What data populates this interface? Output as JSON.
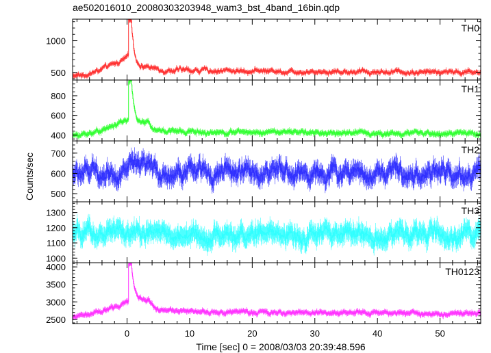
{
  "chart_data": {
    "type": "line",
    "title": "ae502016010_20080303203948_wam3_bst_4band_16bin.qdp",
    "xlabel": "Time [sec] 0 = 2008/03/03 20:39:48.596",
    "ylabel": "Counts/sec",
    "xlim": [
      -8.7,
      56.5
    ],
    "x_ticks": [
      0,
      10,
      20,
      30,
      40,
      50
    ],
    "x_tick_labels": [
      "0",
      "10",
      "20",
      "30",
      "40",
      "50"
    ],
    "grid": false,
    "panels": [
      {
        "name": "TH0",
        "color": "#ff3030",
        "ylim": [
          380,
          1340
        ],
        "y_ticks": [
          500,
          1000
        ],
        "y_tick_labels": [
          "500",
          "1000"
        ],
        "profile": {
          "pre_start": 440,
          "pre_end": 740,
          "peak_t": 0.5,
          "peak": 1320,
          "decay_level": 590,
          "decay_tau": 1.3,
          "tail_start": 540,
          "tail_end": 500
        },
        "noise": 45,
        "errbar": 32
      },
      {
        "name": "TH1",
        "color": "#30ff30",
        "ylim": [
          340,
          960
        ],
        "y_ticks": [
          400,
          600,
          800
        ],
        "y_tick_labels": [
          "400",
          "600",
          "800"
        ],
        "profile": {
          "pre_start": 395,
          "pre_end": 560,
          "peak_t": 0.5,
          "peak": 940,
          "decay_level": 520,
          "decay_tau": 1.3,
          "tail_start": 440,
          "tail_end": 410
        },
        "noise": 28,
        "errbar": 24
      },
      {
        "name": "TH2",
        "color": "#3030ff",
        "ylim": [
          460,
          760
        ],
        "y_ticks": [
          500,
          600,
          700
        ],
        "y_tick_labels": [
          "500",
          "600",
          "700"
        ],
        "profile": {
          "pre_start": 600,
          "pre_end": 620,
          "peak_t": 0.5,
          "peak": 640,
          "decay_level": 615,
          "decay_tau": 1.5,
          "tail_start": 605,
          "tail_end": 600
        },
        "noise": 52,
        "errbar": 38
      },
      {
        "name": "TH3",
        "color": "#30ffff",
        "ylim": [
          970,
          1370
        ],
        "y_ticks": [
          1000,
          1100,
          1200,
          1300
        ],
        "y_tick_labels": [
          "1000",
          "1100",
          "1200",
          "1300"
        ],
        "profile": {
          "pre_start": 1150,
          "pre_end": 1160,
          "peak_t": 0.5,
          "peak": 1160,
          "decay_level": 1160,
          "decay_tau": 1.5,
          "tail_start": 1150,
          "tail_end": 1150
        },
        "noise": 62,
        "errbar": 55
      },
      {
        "name": "TH0123",
        "color": "#ff30ff",
        "ylim": [
          2380,
          4120
        ],
        "y_ticks": [
          2500,
          3000,
          3500,
          4000
        ],
        "y_tick_labels": [
          "2500",
          "3000",
          "3500",
          "4000"
        ],
        "profile": {
          "pre_start": 2580,
          "pre_end": 3000,
          "peak_t": 0.5,
          "peak": 4090,
          "decay_level": 3050,
          "decay_tau": 1.4,
          "tail_start": 2720,
          "tail_end": 2670
        },
        "noise": 70,
        "errbar": 65
      }
    ]
  }
}
